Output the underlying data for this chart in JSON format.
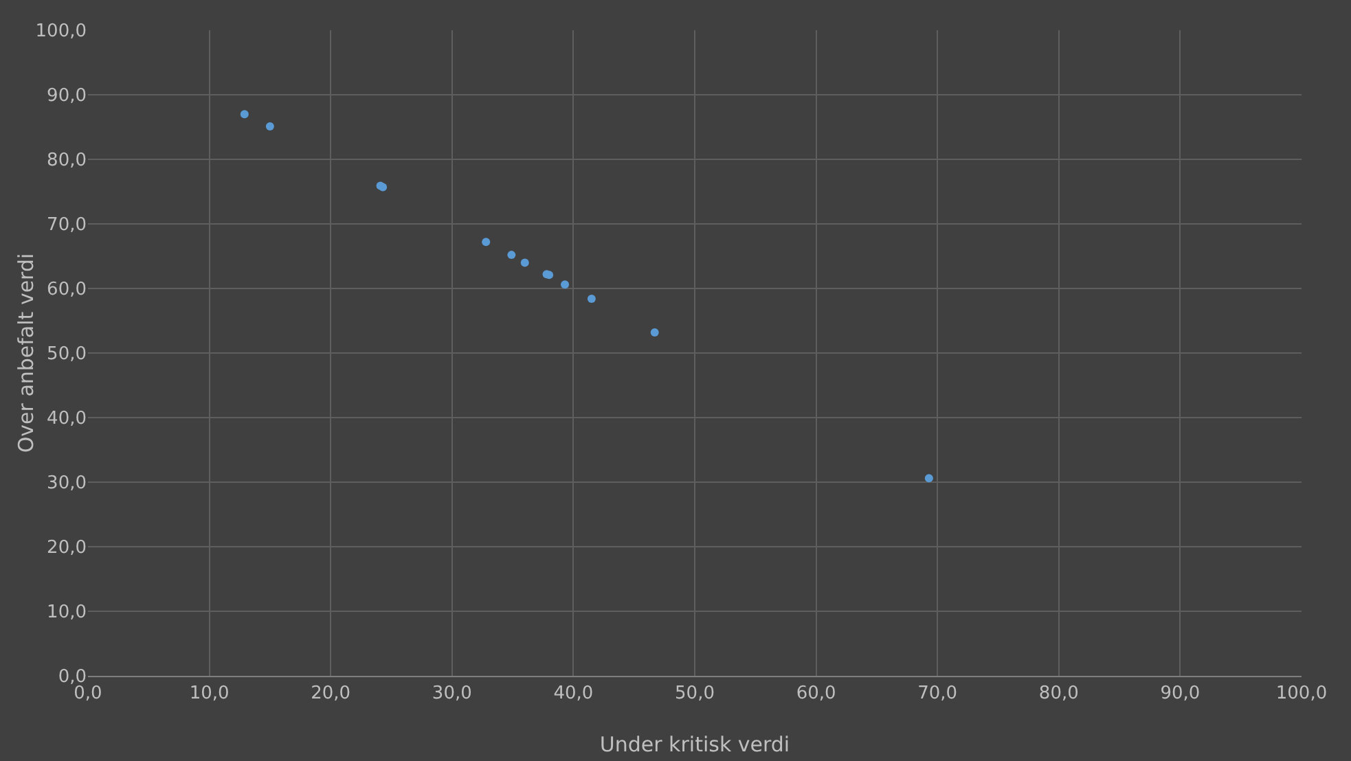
{
  "chart_data": {
    "type": "scatter",
    "xlabel": "Under kritisk verdi",
    "ylabel": "Over anbefalt verdi",
    "x": [
      12.9,
      15.0,
      24.1,
      24.3,
      32.8,
      34.9,
      36.0,
      37.8,
      38.0,
      39.3,
      41.5,
      46.7,
      69.3
    ],
    "series": [
      {
        "color": "#5b9bd5",
        "values": [
          87.0,
          85.1,
          75.9,
          75.7,
          67.2,
          65.2,
          64.0,
          62.2,
          62.1,
          60.6,
          58.4,
          53.2,
          30.6
        ]
      }
    ],
    "xlim": [
      0,
      100
    ],
    "ylim": [
      0,
      100
    ],
    "xticks": [
      {
        "value": 0,
        "label": "0,0"
      },
      {
        "value": 10,
        "label": "10,0"
      },
      {
        "value": 20,
        "label": "20,0"
      },
      {
        "value": 30,
        "label": "30,0"
      },
      {
        "value": 40,
        "label": "40,0"
      },
      {
        "value": 50,
        "label": "50,0"
      },
      {
        "value": 60,
        "label": "60,0"
      },
      {
        "value": 70,
        "label": "70,0"
      },
      {
        "value": 80,
        "label": "80,0"
      },
      {
        "value": 90,
        "label": "90,0"
      },
      {
        "value": 100,
        "label": "100,0"
      }
    ],
    "yticks": [
      {
        "value": 0,
        "label": "0,0"
      },
      {
        "value": 10,
        "label": "10,0"
      },
      {
        "value": 20,
        "label": "20,0"
      },
      {
        "value": 30,
        "label": "30,0"
      },
      {
        "value": 40,
        "label": "40,0"
      },
      {
        "value": 50,
        "label": "50,0"
      },
      {
        "value": 60,
        "label": "60,0"
      },
      {
        "value": 70,
        "label": "70,0"
      },
      {
        "value": 80,
        "label": "80,0"
      },
      {
        "value": 90,
        "label": "90,0"
      },
      {
        "value": 100,
        "label": "100,0"
      }
    ],
    "grid": true,
    "marker": "circle"
  }
}
